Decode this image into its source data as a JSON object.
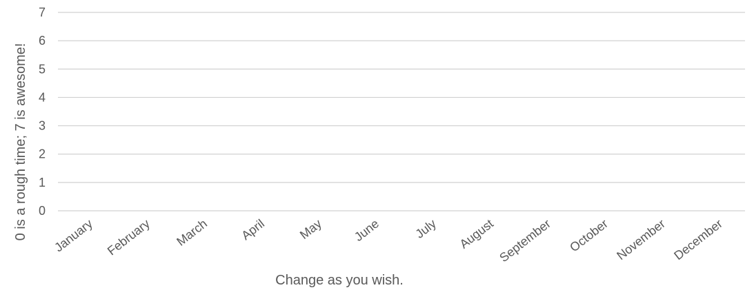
{
  "chart_data": {
    "type": "line",
    "title": "",
    "xlabel": "Change as you wish.",
    "ylabel": "0 is a rough time; 7 is awesome!",
    "categories": [
      "January",
      "February",
      "March",
      "April",
      "May",
      "June",
      "July",
      "August",
      "September",
      "October",
      "November",
      "December"
    ],
    "series": [],
    "ylim": [
      0,
      7
    ],
    "yticks": [
      0,
      1,
      2,
      3,
      4,
      5,
      6,
      7
    ],
    "grid": true,
    "legend": "none",
    "colors": {
      "text": "#595959",
      "grid": "#d0d0d0"
    }
  }
}
